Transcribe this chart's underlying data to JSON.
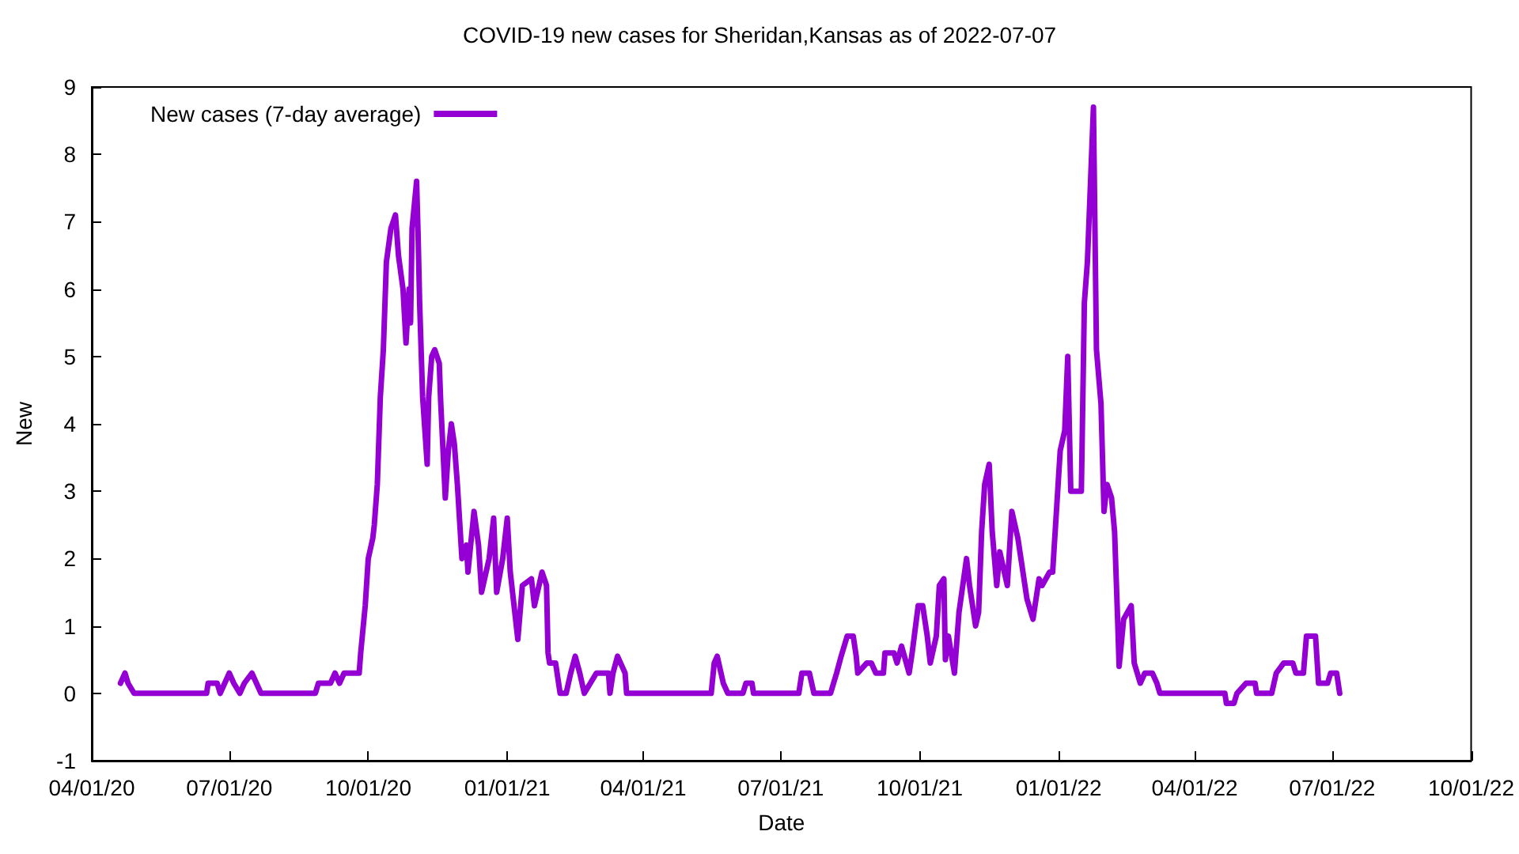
{
  "chart_data": {
    "type": "line",
    "title": "COVID-19 new cases for Sheridan,Kansas as of 2022-07-07",
    "xlabel": "Date",
    "ylabel": "New",
    "xlim": [
      "2020-04-01",
      "2022-10-01"
    ],
    "xticks": [
      {
        "value": "2020-04-01",
        "label": "04/01/20"
      },
      {
        "value": "2020-07-01",
        "label": "07/01/20"
      },
      {
        "value": "2020-10-01",
        "label": "10/01/20"
      },
      {
        "value": "2021-01-01",
        "label": "01/01/21"
      },
      {
        "value": "2021-04-01",
        "label": "04/01/21"
      },
      {
        "value": "2021-07-01",
        "label": "07/01/21"
      },
      {
        "value": "2021-10-01",
        "label": "10/01/21"
      },
      {
        "value": "2022-01-01",
        "label": "01/01/22"
      },
      {
        "value": "2022-04-01",
        "label": "04/01/22"
      },
      {
        "value": "2022-07-01",
        "label": "07/01/22"
      },
      {
        "value": "2022-10-01",
        "label": "10/01/22"
      }
    ],
    "ylim": [
      -1,
      9
    ],
    "yticks": [
      -1,
      0,
      1,
      2,
      3,
      4,
      5,
      6,
      7,
      8,
      9
    ],
    "grid": false,
    "legend": "top left",
    "marker": "none",
    "line_style": "solid",
    "series": [
      {
        "name": "New cases (7-day average)",
        "color": "#9400d3",
        "x": [
          "2020-04-20",
          "2020-04-23",
          "2020-04-25",
          "2020-04-29",
          "2020-06-16",
          "2020-06-17",
          "2020-06-23",
          "2020-06-25",
          "2020-06-28",
          "2020-07-01",
          "2020-07-04",
          "2020-07-08",
          "2020-07-11",
          "2020-07-16",
          "2020-07-19",
          "2020-07-22",
          "2020-08-27",
          "2020-08-29",
          "2020-09-06",
          "2020-09-09",
          "2020-09-12",
          "2020-09-15",
          "2020-09-25",
          "2020-09-26",
          "2020-09-29",
          "2020-10-01",
          "2020-10-04",
          "2020-10-05",
          "2020-10-07",
          "2020-10-09",
          "2020-10-11",
          "2020-10-13",
          "2020-10-16",
          "2020-10-19",
          "2020-10-21",
          "2020-10-24",
          "2020-10-26",
          "2020-10-28",
          "2020-10-29",
          "2020-10-30",
          "2020-11-02",
          "2020-11-03",
          "2020-11-04",
          "2020-11-06",
          "2020-11-09",
          "2020-11-10",
          "2020-11-12",
          "2020-11-14",
          "2020-11-17",
          "2020-11-18",
          "2020-11-21",
          "2020-11-23",
          "2020-11-25",
          "2020-11-27",
          "2020-11-29",
          "2020-12-02",
          "2020-12-05",
          "2020-12-06",
          "2020-12-10",
          "2020-12-13",
          "2020-12-15",
          "2020-12-20",
          "2020-12-23",
          "2020-12-25",
          "2020-12-29",
          "2021-01-01",
          "2021-01-03",
          "2021-01-04",
          "2021-01-08",
          "2021-01-11",
          "2021-01-17",
          "2021-01-19",
          "2021-01-24",
          "2021-01-27",
          "2021-01-28",
          "2021-01-29",
          "2021-02-02",
          "2021-02-05",
          "2021-02-09",
          "2021-02-12",
          "2021-02-15",
          "2021-02-18",
          "2021-02-21",
          "2021-03-01",
          "2021-03-09",
          "2021-03-10",
          "2021-03-12",
          "2021-03-15",
          "2021-03-20",
          "2021-03-21",
          "2021-05-16",
          "2021-05-18",
          "2021-05-20",
          "2021-05-24",
          "2021-05-27",
          "2021-06-06",
          "2021-06-08",
          "2021-06-12",
          "2021-06-13",
          "2021-07-13",
          "2021-07-15",
          "2021-07-20",
          "2021-07-23",
          "2021-08-03",
          "2021-08-07",
          "2021-08-10",
          "2021-08-14",
          "2021-08-18",
          "2021-08-20",
          "2021-08-21",
          "2021-08-27",
          "2021-08-30",
          "2021-09-02",
          "2021-09-07",
          "2021-09-08",
          "2021-09-14",
          "2021-09-16",
          "2021-09-19",
          "2021-09-24",
          "2021-09-26",
          "2021-09-30",
          "2021-10-03",
          "2021-10-06",
          "2021-10-08",
          "2021-10-12",
          "2021-10-14",
          "2021-10-17",
          "2021-10-18",
          "2021-10-20",
          "2021-10-24",
          "2021-10-27",
          "2021-11-01",
          "2021-11-03",
          "2021-11-07",
          "2021-11-09",
          "2021-11-11",
          "2021-11-13",
          "2021-11-16",
          "2021-11-18",
          "2021-11-21",
          "2021-11-23",
          "2021-11-28",
          "2021-12-01",
          "2021-12-05",
          "2021-12-11",
          "2021-12-15",
          "2021-12-19",
          "2021-12-21",
          "2021-12-26",
          "2021-12-28",
          "2022-01-02",
          "2022-01-05",
          "2022-01-07",
          "2022-01-09",
          "2022-01-16",
          "2022-01-18",
          "2022-01-20",
          "2022-01-24",
          "2022-01-26",
          "2022-01-29",
          "2022-01-31",
          "2022-02-02",
          "2022-02-05",
          "2022-02-07",
          "2022-02-09",
          "2022-02-10",
          "2022-02-13",
          "2022-02-18",
          "2022-02-20",
          "2022-02-22",
          "2022-02-24",
          "2022-02-27",
          "2022-03-04",
          "2022-03-07",
          "2022-03-09",
          "2022-04-21",
          "2022-04-22",
          "2022-04-27",
          "2022-04-29",
          "2022-05-05",
          "2022-05-11",
          "2022-05-12",
          "2022-05-22",
          "2022-05-25",
          "2022-05-30",
          "2022-06-05",
          "2022-06-07",
          "2022-06-12",
          "2022-06-14",
          "2022-06-20",
          "2022-06-22",
          "2022-06-28",
          "2022-06-30",
          "2022-07-04",
          "2022-07-06"
        ],
        "values": [
          0.15,
          0.3,
          0.15,
          0,
          0,
          0.15,
          0.15,
          0,
          0.15,
          0.3,
          0.15,
          0,
          0.15,
          0.3,
          0.15,
          0,
          0,
          0.15,
          0.15,
          0.3,
          0.15,
          0.3,
          0.3,
          0.6,
          1.3,
          2.0,
          2.3,
          2.5,
          3.1,
          4.4,
          5.1,
          6.4,
          6.9,
          7.1,
          6.5,
          6.0,
          5.2,
          6.0,
          5.5,
          6.9,
          7.6,
          6.8,
          5.8,
          4.4,
          3.4,
          4.4,
          5.0,
          5.1,
          4.9,
          4.3,
          2.9,
          3.6,
          4.0,
          3.7,
          3.1,
          2.0,
          2.2,
          1.8,
          2.7,
          2.2,
          1.5,
          2.0,
          2.6,
          1.5,
          2.0,
          2.6,
          1.8,
          1.6,
          0.8,
          1.6,
          1.7,
          1.3,
          1.8,
          1.6,
          0.6,
          0.45,
          0.45,
          0,
          0,
          0.3,
          0.55,
          0.3,
          0,
          0.3,
          0.3,
          0,
          0.3,
          0.55,
          0.3,
          0,
          0,
          0.45,
          0.55,
          0.15,
          0,
          0,
          0.15,
          0.15,
          0,
          0,
          0.3,
          0.3,
          0,
          0,
          0.3,
          0.55,
          0.85,
          0.85,
          0.55,
          0.3,
          0.45,
          0.45,
          0.3,
          0.3,
          0.6,
          0.6,
          0.45,
          0.7,
          0.3,
          0.6,
          1.3,
          1.3,
          0.85,
          0.45,
          0.85,
          1.6,
          1.7,
          0.5,
          0.85,
          0.3,
          1.2,
          2.0,
          1.6,
          1.0,
          1.2,
          2.4,
          3.1,
          3.4,
          2.4,
          1.6,
          2.1,
          1.6,
          2.7,
          2.3,
          1.4,
          1.1,
          1.7,
          1.6,
          1.8,
          1.8,
          3.6,
          3.9,
          5.0,
          3.0,
          3.0,
          5.8,
          6.4,
          8.7,
          5.1,
          4.3,
          2.7,
          3.1,
          2.9,
          2.4,
          1.1,
          0.4,
          1.1,
          1.3,
          0.45,
          0.3,
          0.15,
          0.3,
          0.3,
          0.15,
          0,
          0,
          -0.15,
          -0.15,
          0,
          0.15,
          0.15,
          0,
          0,
          0.3,
          0.45,
          0.45,
          0.3,
          0.3,
          0.85,
          0.85,
          0.15,
          0.15,
          0.3,
          0.3,
          0
        ]
      }
    ]
  }
}
